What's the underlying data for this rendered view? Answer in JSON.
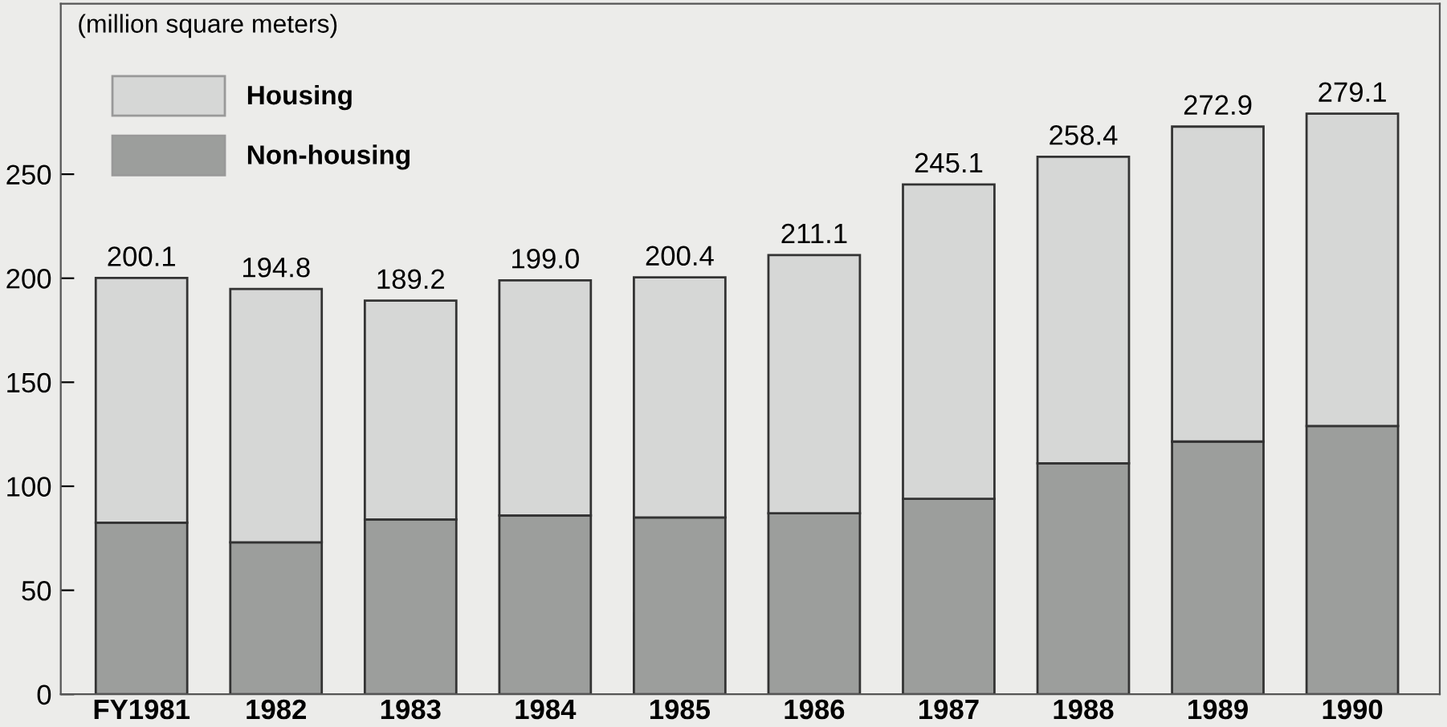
{
  "chart_data": {
    "type": "bar",
    "stacked": true,
    "ylabel": "(million square meters)",
    "categories": [
      "FY1981",
      "1982",
      "1983",
      "1984",
      "1985",
      "1986",
      "1987",
      "1988",
      "1989",
      "1990"
    ],
    "series": [
      {
        "name": "Non-housing",
        "color": "#9c9e9c",
        "values": [
          82.5,
          73,
          84,
          86,
          85,
          87,
          94,
          111,
          121.5,
          129
        ]
      },
      {
        "name": "Housing",
        "color": "#d6d7d6",
        "values": [
          117.6,
          121.8,
          105.2,
          113,
          115.4,
          124.1,
          151.1,
          147.4,
          151.4,
          150.1
        ]
      }
    ],
    "totals": [
      "200.1",
      "194.8",
      "189.2",
      "199.0",
      "200.4",
      "211.1",
      "245.1",
      "258.4",
      "272.9",
      "279.1"
    ],
    "ylim": [
      0,
      332
    ],
    "yticks": [
      0,
      50,
      100,
      150,
      200,
      250
    ],
    "grid": false,
    "legend": "top left"
  }
}
